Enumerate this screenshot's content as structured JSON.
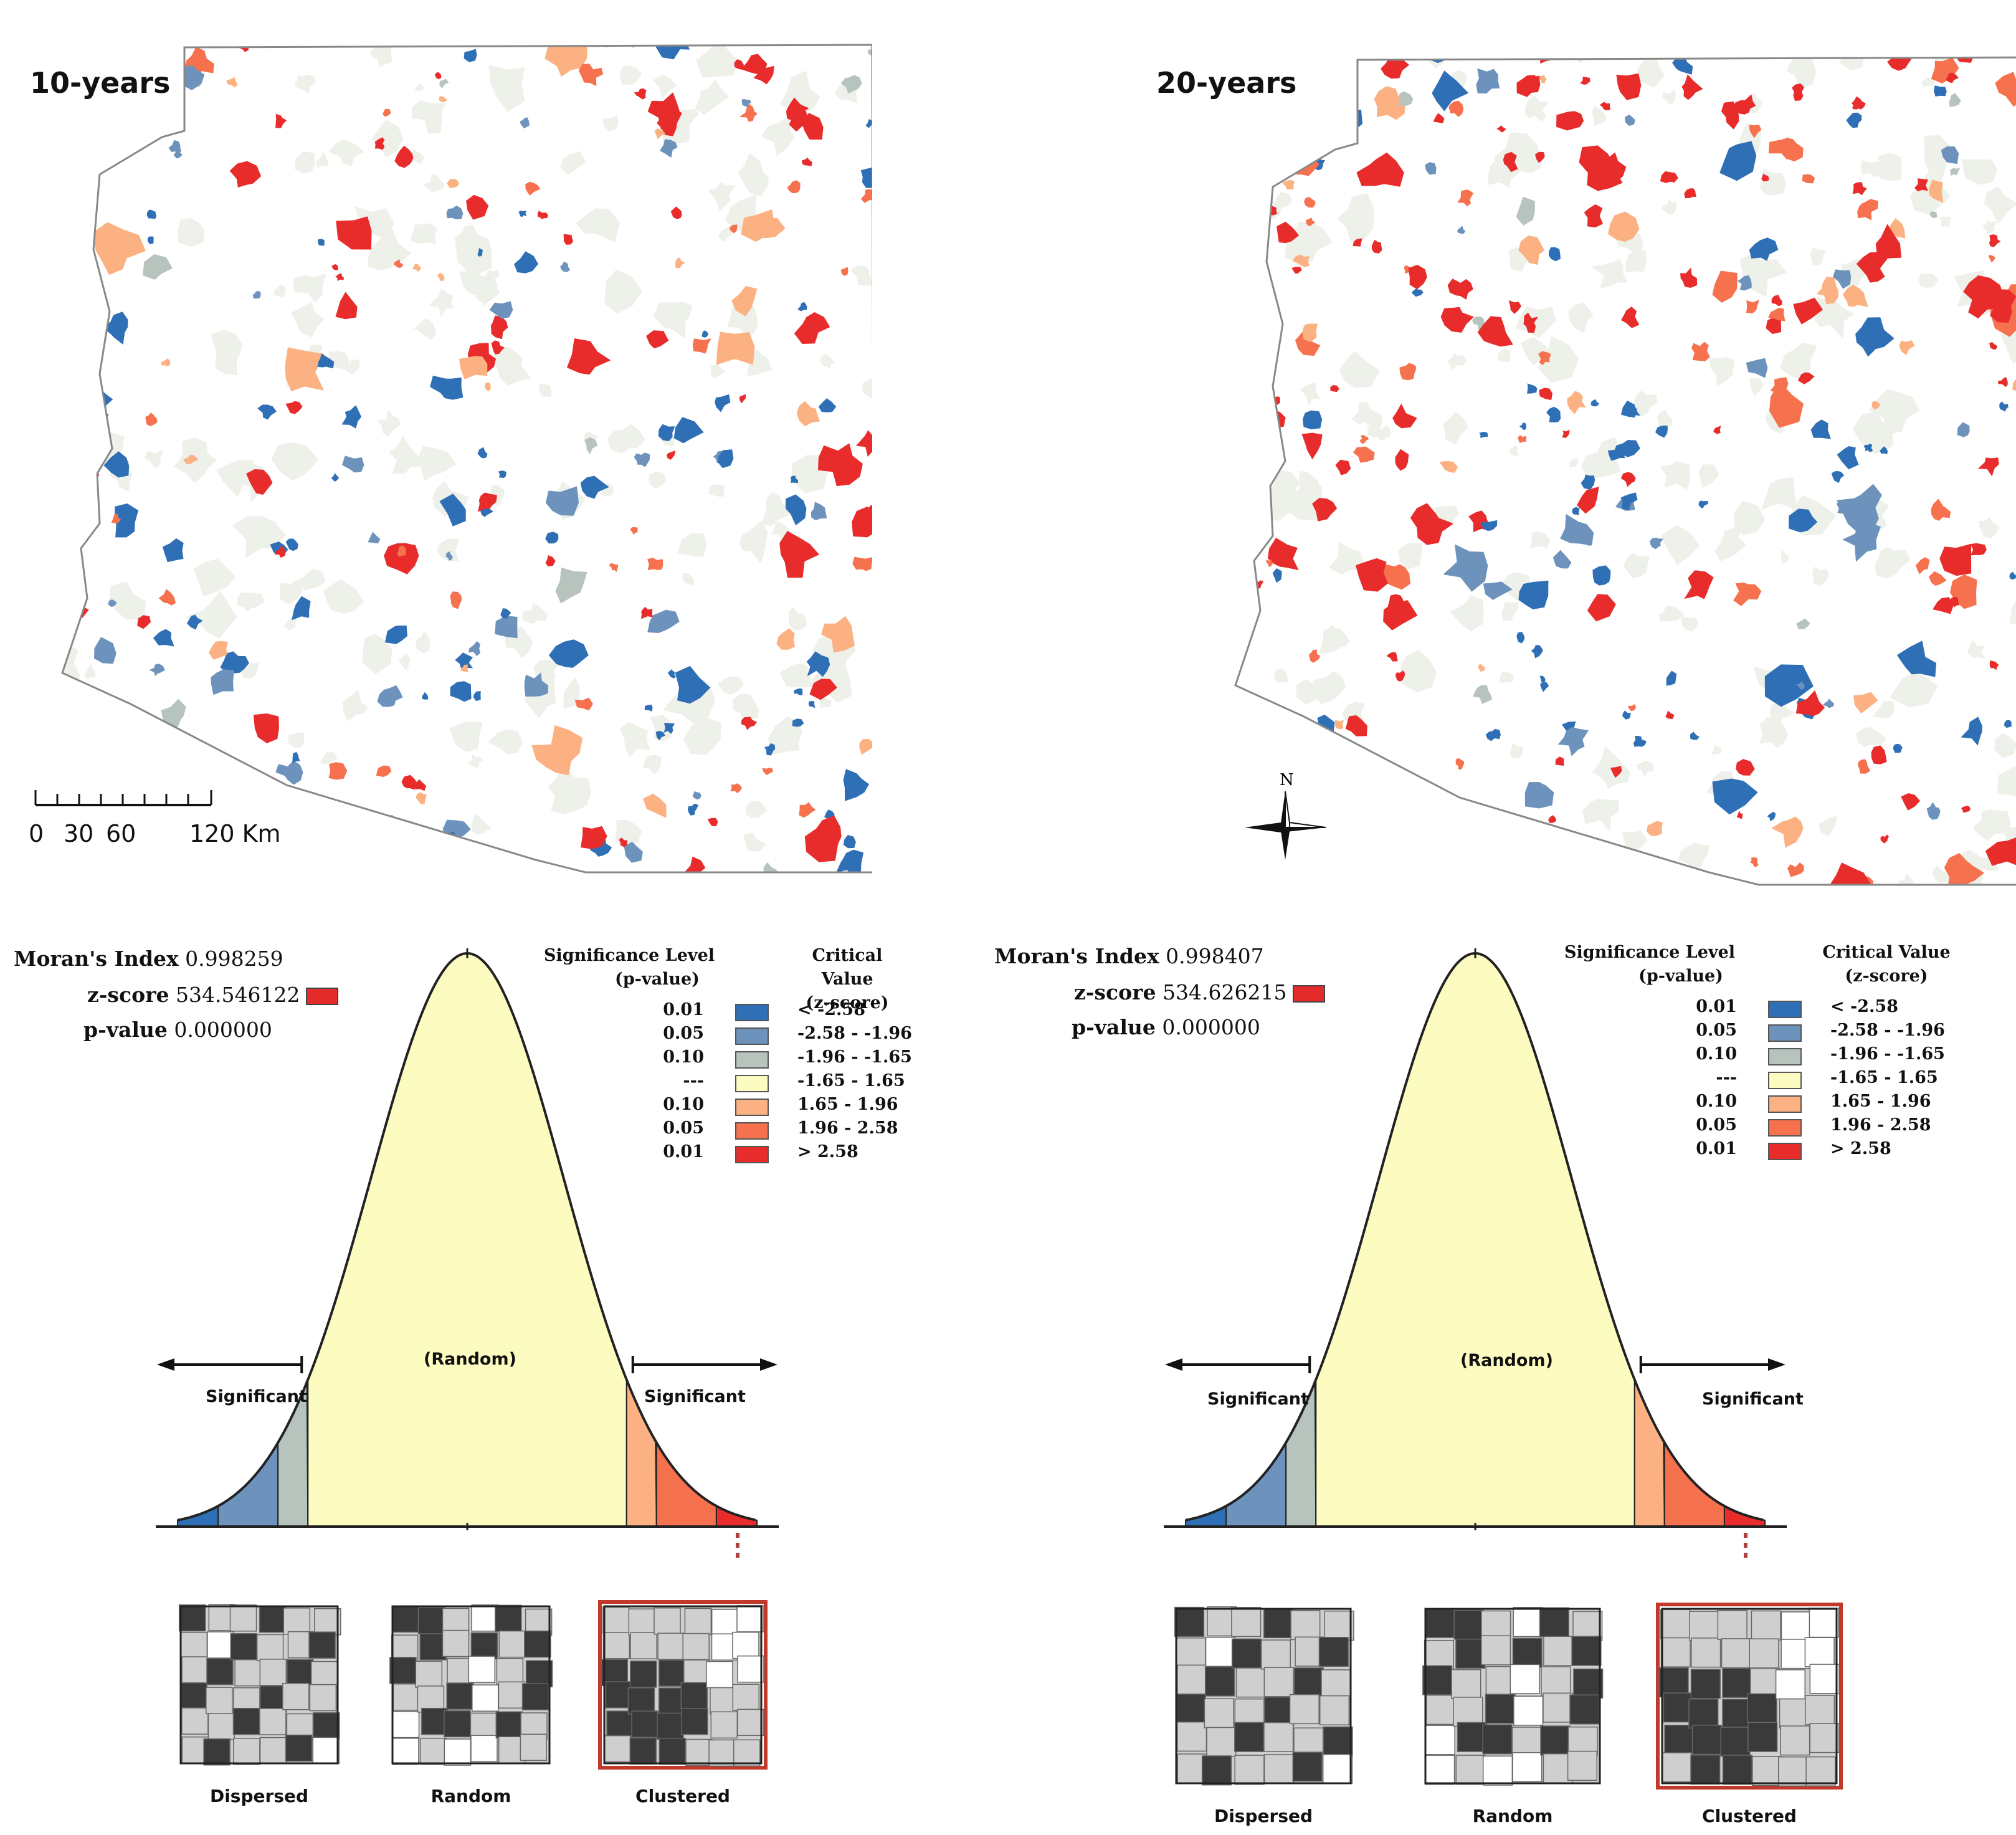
{
  "colors": {
    "sig_neg_001": "#2f6fb5",
    "sig_neg_005": "#6d93bd",
    "sig_neg_010": "#b6c4bd",
    "not_sig": "#fdfcc0",
    "sig_pos_010": "#fcb182",
    "sig_pos_005": "#f6714e",
    "sig_pos_001": "#e82c2c",
    "background_parcels": "#eef0ea",
    "state_outline": "#888888"
  },
  "panels": [
    {
      "id": "10-years",
      "map": {
        "title": "10-years",
        "scale": {
          "labels": [
            "0",
            "30",
            "60",
            "120 Km"
          ]
        }
      },
      "stats": {
        "morans_label": "Moran's Index",
        "morans_value": "0.998259",
        "z_label": "z-score",
        "z_value": "534.546122",
        "p_label": "p-value",
        "p_value": "0.000000"
      },
      "legend": {
        "sig_header_1": "Significance Level",
        "sig_header_2": "(p-value)",
        "cv_header_1": "Critical Value",
        "cv_header_2": "(z-score)",
        "rows": [
          {
            "p": "0.01",
            "z": "< -2.58",
            "color": "sig_neg_001"
          },
          {
            "p": "0.05",
            "z": "-2.58 - -1.96",
            "color": "sig_neg_005"
          },
          {
            "p": "0.10",
            "z": "-1.96 - -1.65",
            "color": "sig_neg_010"
          },
          {
            "p": "---",
            "z": "-1.65 - 1.65",
            "color": "not_sig"
          },
          {
            "p": "0.10",
            "z": "1.65 - 1.96",
            "color": "sig_pos_010"
          },
          {
            "p": "0.05",
            "z": "1.96 - 2.58",
            "color": "sig_pos_005"
          },
          {
            "p": "0.01",
            "z": "> 2.58",
            "color": "sig_pos_001"
          }
        ]
      },
      "curve": {
        "random_label": "(Random)",
        "left_label": "Significant",
        "right_label": "Significant"
      },
      "thumbs": [
        {
          "label": "Dispersed",
          "highlighted": false
        },
        {
          "label": "Random",
          "highlighted": false
        },
        {
          "label": "Clustered",
          "highlighted": true
        }
      ]
    },
    {
      "id": "20-years",
      "map": {
        "title": "20-years",
        "north_label": "N"
      },
      "stats": {
        "morans_label": "Moran's Index",
        "morans_value": "0.998407",
        "z_label": "z-score",
        "z_value": "534.626215",
        "p_label": "p-value",
        "p_value": "0.000000"
      },
      "legend": {
        "sig_header_1": "Significance Level",
        "sig_header_2": "(p-value)",
        "cv_header_1": "Critical Value",
        "cv_header_2": "(z-score)",
        "rows": [
          {
            "p": "0.01",
            "z": "< -2.58",
            "color": "sig_neg_001"
          },
          {
            "p": "0.05",
            "z": "-2.58 - -1.96",
            "color": "sig_neg_005"
          },
          {
            "p": "0.10",
            "z": "-1.96 - -1.65",
            "color": "sig_neg_010"
          },
          {
            "p": "---",
            "z": "-1.65 - 1.65",
            "color": "not_sig"
          },
          {
            "p": "0.10",
            "z": "1.65 - 1.96",
            "color": "sig_pos_010"
          },
          {
            "p": "0.05",
            "z": "1.96 - 2.58",
            "color": "sig_pos_005"
          },
          {
            "p": "0.01",
            "z": "> 2.58",
            "color": "sig_pos_001"
          }
        ]
      },
      "curve": {
        "random_label": "(Random)",
        "left_label": "Significant",
        "right_label": "Significant"
      },
      "thumbs": [
        {
          "label": "Dispersed",
          "highlighted": false
        },
        {
          "label": "Random",
          "highlighted": false
        },
        {
          "label": "Clustered",
          "highlighted": true
        }
      ]
    }
  ]
}
